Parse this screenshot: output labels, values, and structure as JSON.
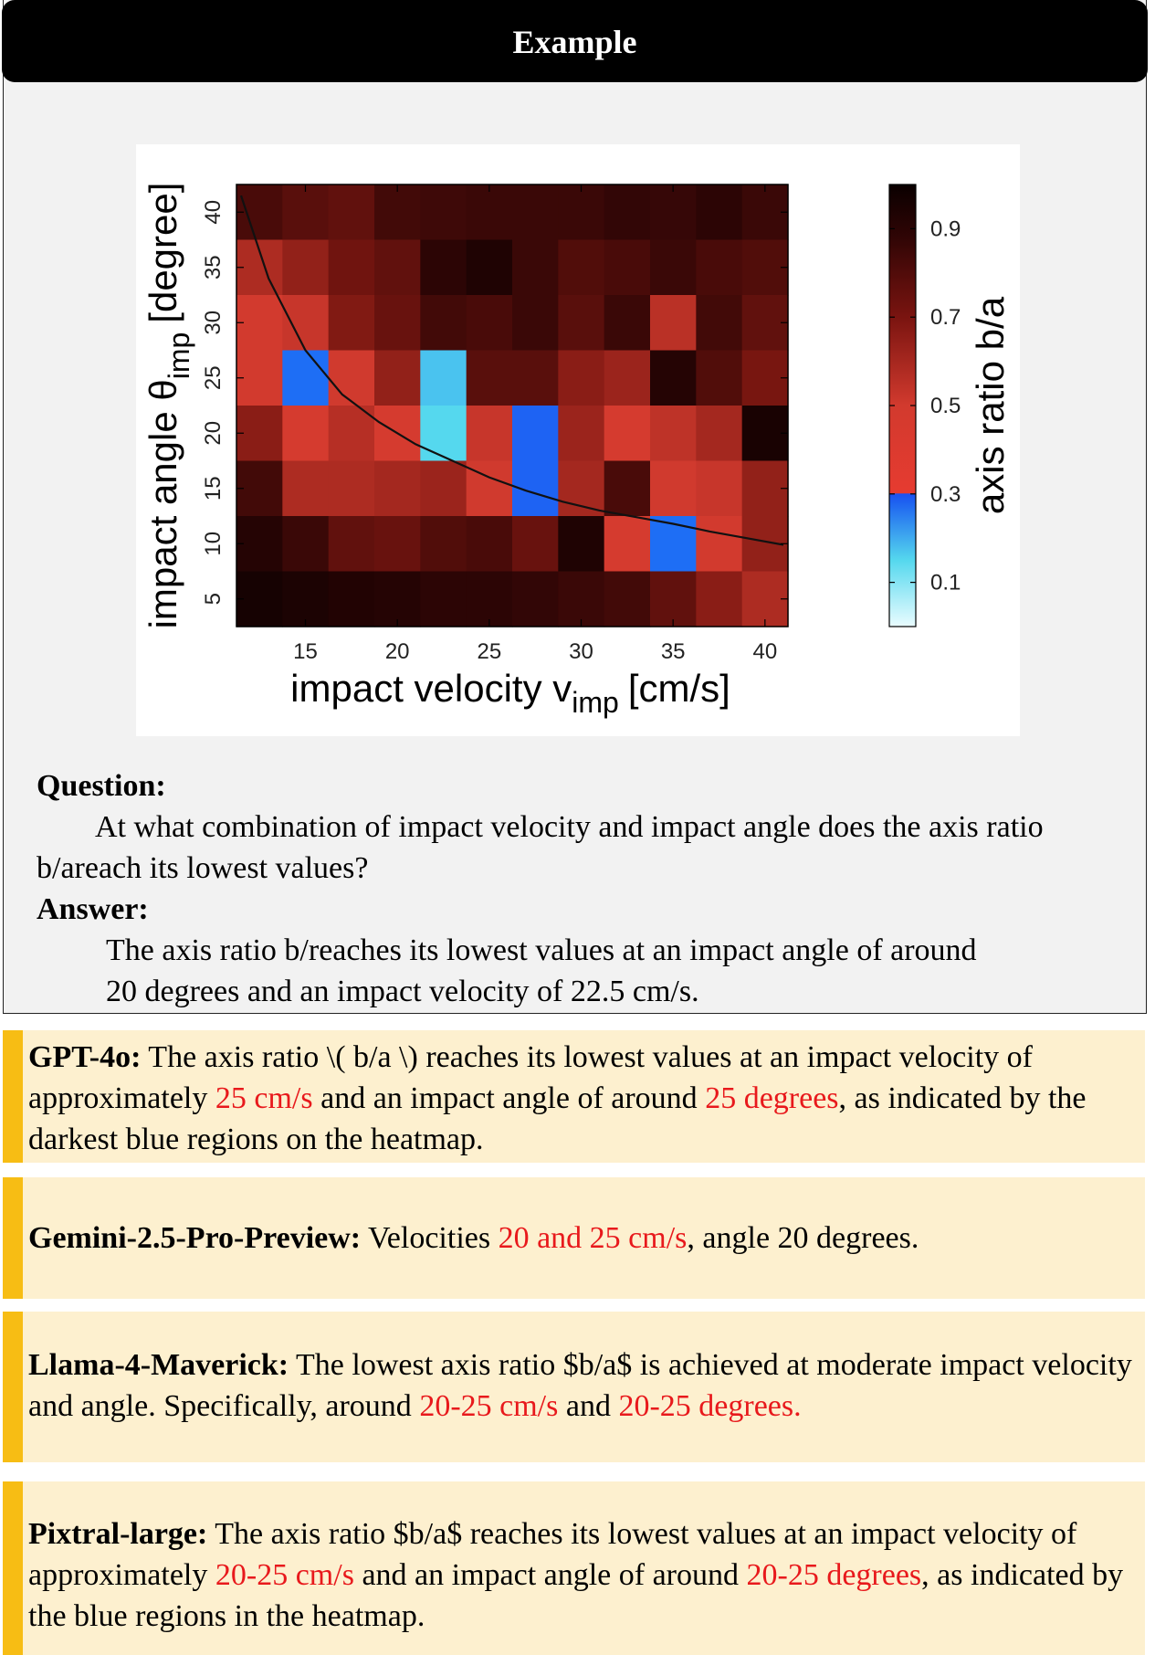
{
  "header": {
    "title": "Example"
  },
  "colors": {
    "header_bg": "#000000",
    "card_bg": "#f2f2f2",
    "response_bg": "#fdf0cf",
    "accent_bar": "#f7bd14",
    "highlight_text": "#e8191c"
  },
  "chart_data": {
    "type": "heatmap",
    "xlabel": "impact velocity v",
    "xlabel_sub": "imp",
    "xlabel_unit": "[cm/s]",
    "ylabel": "impact angle θ",
    "ylabel_sub": "imp",
    "ylabel_unit": "[degree]",
    "colorbar_label": "axis ratio b/a",
    "x_ticks": [
      "15",
      "20",
      "25",
      "30",
      "35",
      "40"
    ],
    "y_ticks": [
      "5",
      "10",
      "15",
      "20",
      "25",
      "30",
      "35",
      "40"
    ],
    "colorbar_ticks": [
      "0.1",
      "0.3",
      "0.5",
      "0.7",
      "0.9"
    ],
    "colorbar_range": [
      0.0,
      1.0
    ],
    "x": [
      12.5,
      15,
      17.5,
      20,
      22.5,
      25,
      27.5,
      30,
      32.5,
      35,
      37.5,
      40
    ],
    "y": [
      40,
      35,
      30,
      25,
      20,
      15,
      10,
      5
    ],
    "values": [
      [
        0.82,
        0.78,
        0.76,
        0.84,
        0.85,
        0.86,
        0.86,
        0.86,
        0.88,
        0.87,
        0.9,
        0.86
      ],
      [
        0.58,
        0.64,
        0.72,
        0.76,
        0.9,
        0.94,
        0.86,
        0.8,
        0.82,
        0.86,
        0.82,
        0.8
      ],
      [
        0.48,
        0.52,
        0.68,
        0.74,
        0.84,
        0.82,
        0.86,
        0.78,
        0.86,
        0.55,
        0.84,
        0.76
      ],
      [
        0.48,
        0.22,
        0.5,
        0.64,
        0.14,
        0.78,
        0.78,
        0.66,
        0.62,
        0.92,
        0.8,
        0.7
      ],
      [
        0.66,
        0.46,
        0.56,
        0.46,
        0.12,
        0.52,
        0.25,
        0.62,
        0.46,
        0.54,
        0.6,
        0.96
      ],
      [
        0.84,
        0.58,
        0.58,
        0.6,
        0.62,
        0.5,
        0.25,
        0.6,
        0.82,
        0.5,
        0.52,
        0.64
      ],
      [
        0.92,
        0.86,
        0.76,
        0.74,
        0.8,
        0.82,
        0.74,
        0.94,
        0.46,
        0.22,
        0.48,
        0.64
      ],
      [
        0.97,
        0.95,
        0.93,
        0.92,
        0.9,
        0.9,
        0.88,
        0.86,
        0.84,
        0.76,
        0.66,
        0.58
      ]
    ],
    "curve": {
      "x": [
        11.5,
        13,
        15,
        17,
        19,
        21,
        23,
        25,
        27,
        29,
        31,
        33,
        35,
        37,
        39,
        41
      ],
      "y": [
        41.5,
        34,
        27.5,
        23.5,
        21,
        19,
        17.5,
        16,
        14.8,
        13.8,
        13,
        12.4,
        11.8,
        11.1,
        10.5,
        9.9
      ]
    }
  },
  "question": {
    "label": "Question:",
    "text": "At what combination of impact velocity and impact angle does the axis ratio b/areach its lowest values?"
  },
  "answer": {
    "label": "Answer:",
    "line1": "The axis ratio b/reaches its lowest values at an impact angle of around",
    "line2": "20 degrees and an impact velocity of 22.5 cm/s."
  },
  "responses": [
    {
      "model": "GPT-4o:",
      "parts": [
        {
          "text": " The axis ratio \\( b/a \\) reaches its lowest values at an impact velocity of approximately ",
          "highlight": false
        },
        {
          "text": "25 cm/s",
          "highlight": true
        },
        {
          "text": " and an impact angle of around ",
          "highlight": false
        },
        {
          "text": "25 degrees",
          "highlight": true
        },
        {
          "text": ", as indicated by the darkest blue regions on the heatmap.",
          "highlight": false
        }
      ]
    },
    {
      "model": "Gemini-2.5-Pro-Preview:",
      "parts": [
        {
          "text": " Velocities ",
          "highlight": false
        },
        {
          "text": "20 and 25 cm/s",
          "highlight": true
        },
        {
          "text": ", angle 20 degrees.",
          "highlight": false
        }
      ]
    },
    {
      "model": "Llama-4-Maverick:",
      "parts": [
        {
          "text": " The lowest axis ratio $b/a$ is achieved at moderate impact velocity and angle. Specifically, around ",
          "highlight": false
        },
        {
          "text": "20-25 cm/s",
          "highlight": true
        },
        {
          "text": " and ",
          "highlight": false
        },
        {
          "text": "20-25 degrees.",
          "highlight": true
        }
      ]
    },
    {
      "model": "Pixtral-large:",
      "parts": [
        {
          "text": " The axis ratio $b/a$ reaches its lowest values at an impact velocity of approximately ",
          "highlight": false
        },
        {
          "text": "20-25 cm/s",
          "highlight": true
        },
        {
          "text": " and an impact angle of around ",
          "highlight": false
        },
        {
          "text": "20-25 degrees",
          "highlight": true
        },
        {
          "text": ", as indicated by the blue regions in the heatmap.",
          "highlight": false
        }
      ]
    }
  ]
}
